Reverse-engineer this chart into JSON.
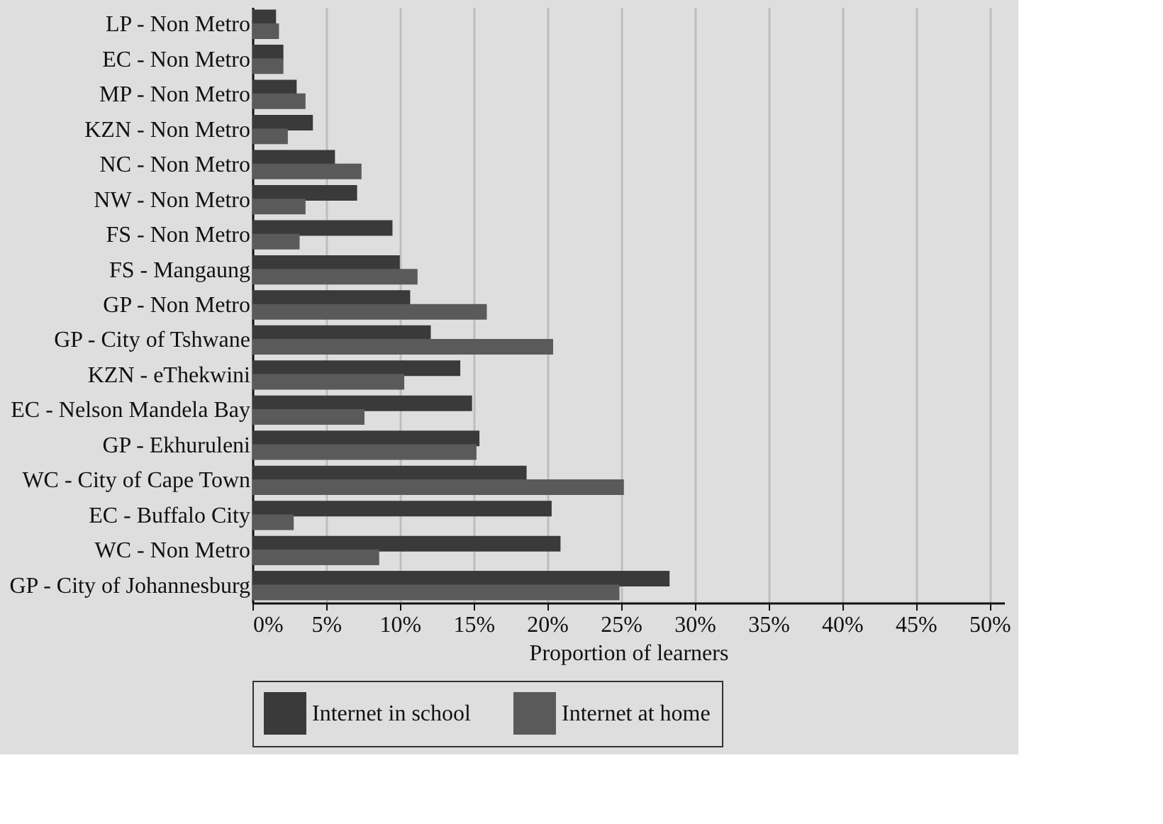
{
  "chart_data": {
    "type": "bar",
    "orientation": "horizontal",
    "xlabel": "Proportion of learners",
    "categories": [
      "LP - Non Metro",
      "EC - Non Metro",
      "MP - Non Metro",
      "KZN - Non Metro",
      "NC - Non Metro",
      "NW - Non Metro",
      "FS - Non Metro",
      "FS - Mangaung",
      "GP - Non Metro",
      "GP - City of Tshwane",
      "KZN - eThekwini",
      "EC - Nelson Mandela Bay",
      "GP - Ekhuruleni",
      "WC - City of Cape Town",
      "EC - Buffalo City",
      "WC - Non Metro",
      "GP - City of Johannesburg"
    ],
    "series": [
      {
        "name": "Internet in school",
        "color": "#3a3a3a",
        "values": [
          1.6,
          2.1,
          3.0,
          4.1,
          5.6,
          7.1,
          9.5,
          10.0,
          10.7,
          12.1,
          14.1,
          14.9,
          15.4,
          18.6,
          20.3,
          20.9,
          28.3
        ]
      },
      {
        "name": "Internet at home",
        "color": "#5a5a5a",
        "values": [
          1.8,
          2.1,
          3.6,
          2.4,
          7.4,
          3.6,
          3.2,
          11.2,
          15.9,
          20.4,
          10.3,
          7.6,
          15.2,
          25.2,
          2.8,
          8.6,
          24.9
        ]
      }
    ],
    "xlim": [
      0,
      51
    ],
    "xticks": [
      {
        "value": 0,
        "label": "0%"
      },
      {
        "value": 5,
        "label": "5%"
      },
      {
        "value": 10,
        "label": "10%"
      },
      {
        "value": 15,
        "label": "15%"
      },
      {
        "value": 20,
        "label": "20%"
      },
      {
        "value": 25,
        "label": "25%"
      },
      {
        "value": 30,
        "label": "30%"
      },
      {
        "value": 35,
        "label": "35%"
      },
      {
        "value": 40,
        "label": "40%"
      },
      {
        "value": 45,
        "label": "45%"
      },
      {
        "value": 50,
        "label": "50%"
      }
    ],
    "grid": "x",
    "legend": "bottom"
  }
}
